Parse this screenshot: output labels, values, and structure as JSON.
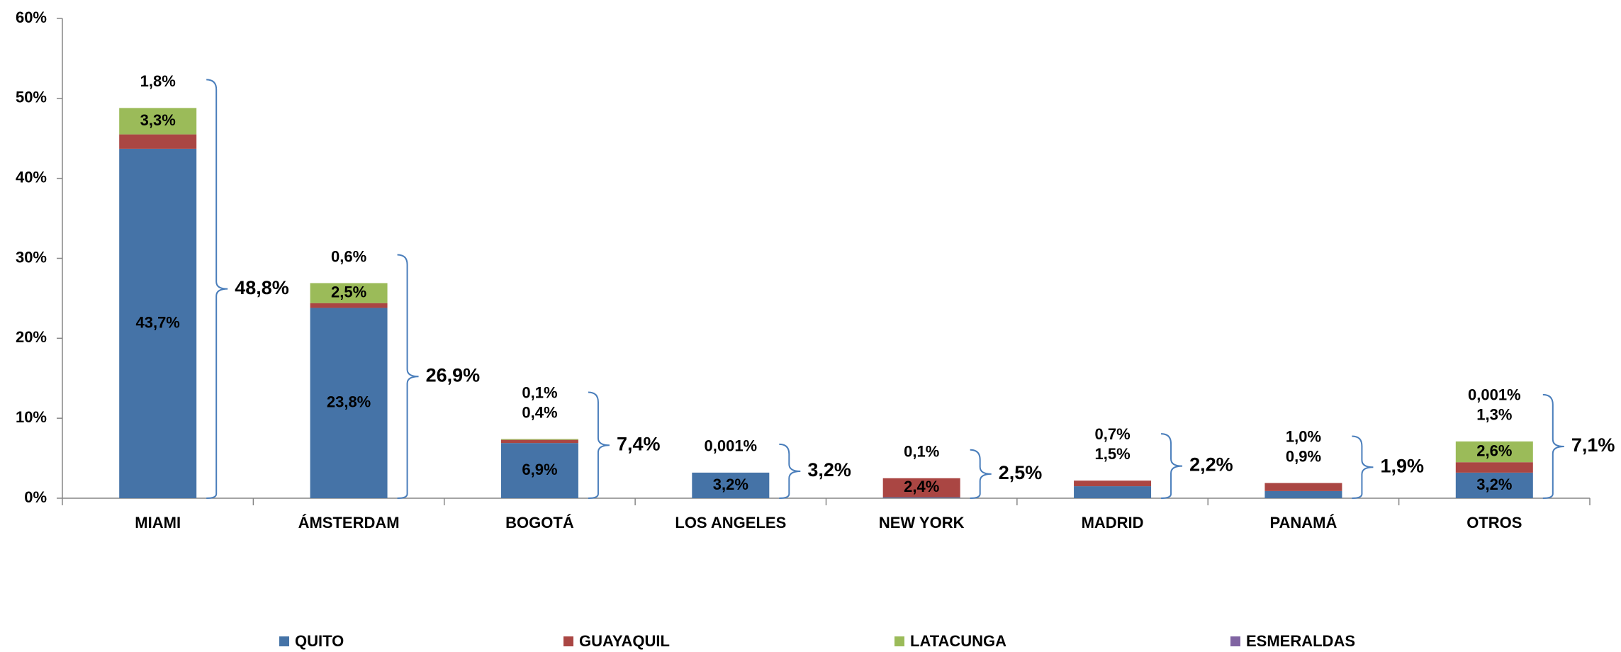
{
  "chart_data": {
    "type": "stacked_bar",
    "categories": [
      "MIAMI",
      "ÁMSTERDAM",
      "BOGOTÁ",
      "LOS ANGELES",
      "NEW YORK",
      "MADRID",
      "PANAMÁ",
      "OTROS"
    ],
    "series": [
      {
        "name": "QUITO",
        "color": "#4573a7",
        "values": [
          43.7,
          23.8,
          6.9,
          3.2,
          0.1,
          1.5,
          0.9,
          3.2
        ],
        "value_labels": [
          "43,7%",
          "23,8%",
          "6,9%",
          "3,2%",
          "0,1%",
          "1,5%",
          "0,9%",
          "3,2%"
        ]
      },
      {
        "name": "GUAYAQUIL",
        "color": "#aa4643",
        "values": [
          1.8,
          0.6,
          0.4,
          0.001,
          2.4,
          0.7,
          1.0,
          1.3
        ],
        "value_labels": [
          "1,8%",
          "0,6%",
          "0,4%",
          "0,001%",
          "2,4%",
          "0,7%",
          "1,0%",
          "1,3%"
        ]
      },
      {
        "name": "LATACUNGA",
        "color": "#9bbb59",
        "values": [
          3.3,
          2.5,
          0.1,
          null,
          null,
          null,
          null,
          2.6
        ],
        "value_labels": [
          "3,3%",
          "2,5%",
          "0,1%",
          null,
          null,
          null,
          null,
          "2,6%"
        ]
      },
      {
        "name": "ESMERALDAS",
        "color": "#8064a2",
        "values": [
          null,
          null,
          null,
          null,
          null,
          null,
          null,
          0.001
        ],
        "value_labels": [
          null,
          null,
          null,
          null,
          null,
          null,
          null,
          "0,001%"
        ]
      }
    ],
    "totals": {
      "values": [
        48.8,
        26.9,
        7.4,
        3.2,
        2.5,
        2.2,
        1.9,
        7.1
      ],
      "value_labels": [
        "48,8%",
        "26,9%",
        "7,4%",
        "3,2%",
        "2,5%",
        "2,2%",
        "1,9%",
        "7,1%"
      ]
    },
    "ylim": [
      0,
      60
    ],
    "yticks": [
      {
        "value": 0,
        "label": "0%"
      },
      {
        "value": 10,
        "label": "10%"
      },
      {
        "value": 20,
        "label": "20%"
      },
      {
        "value": 30,
        "label": "30%"
      },
      {
        "value": 40,
        "label": "40%"
      },
      {
        "value": 50,
        "label": "50%"
      },
      {
        "value": 60,
        "label": "60%"
      }
    ],
    "legend": "bottom"
  }
}
